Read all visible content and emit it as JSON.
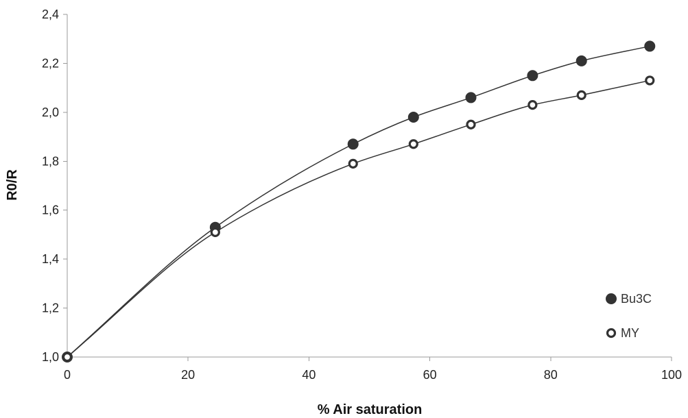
{
  "chart_data": {
    "type": "scatter",
    "title": "",
    "xlabel": "% Air saturation",
    "ylabel": "R0/R",
    "xlim": [
      0,
      100
    ],
    "ylim": [
      1.0,
      2.4
    ],
    "x_ticks": [
      0,
      20,
      40,
      60,
      80,
      100
    ],
    "x_tick_labels": [
      "0",
      "20",
      "40",
      "60",
      "80",
      "100"
    ],
    "y_ticks": [
      1.0,
      1.2,
      1.4,
      1.6,
      1.8,
      2.0,
      2.2,
      2.4
    ],
    "y_tick_labels": [
      "1,0",
      "1,2",
      "1,4",
      "1,6",
      "1,8",
      "2,0",
      "2,2",
      "2,4"
    ],
    "grid": false,
    "legend_position": "bottom-right",
    "series": [
      {
        "name": "Bu3C",
        "marker": "filled-circle",
        "color": "#333333",
        "x": [
          0,
          24.5,
          47.3,
          57.3,
          66.8,
          77.0,
          85.1,
          96.4
        ],
        "y": [
          1.0,
          1.53,
          1.87,
          1.98,
          2.06,
          2.15,
          2.21,
          2.27
        ],
        "fit": "smooth-curve"
      },
      {
        "name": "MY",
        "marker": "open-circle",
        "color": "#333333",
        "x": [
          0,
          24.5,
          47.3,
          57.3,
          66.8,
          77.0,
          85.1,
          96.4
        ],
        "y": [
          1.0,
          1.51,
          1.79,
          1.87,
          1.95,
          2.03,
          2.07,
          2.13
        ],
        "fit": "smooth-curve"
      }
    ]
  }
}
